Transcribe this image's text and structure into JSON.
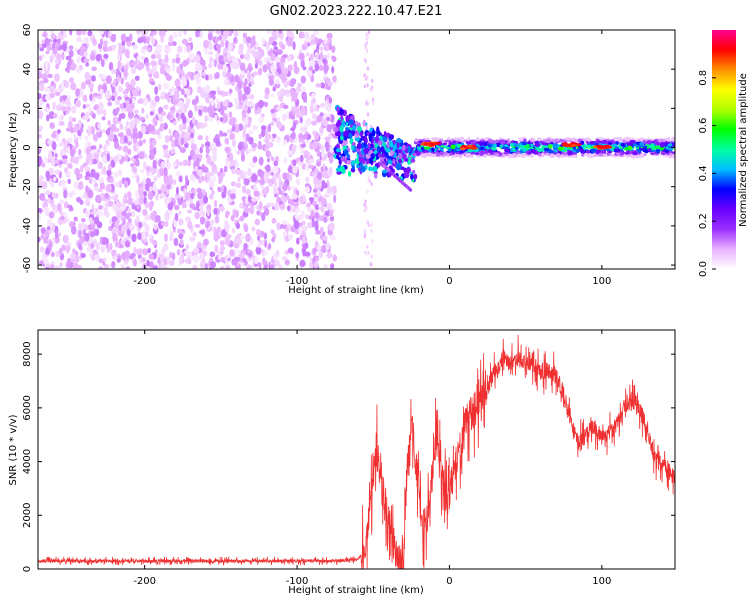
{
  "title": "GN02.2023.222.10.47.E21",
  "chart_data": [
    {
      "type": "heatmap",
      "xlabel": "Height of straight line (km)",
      "ylabel": "Frequency (Hz)",
      "xlim": [
        -270,
        148
      ],
      "ylim": [
        -62,
        60
      ],
      "xticks": [
        -200,
        -100,
        0,
        100
      ],
      "yticks": [
        -60,
        -40,
        -20,
        0,
        20,
        40,
        60
      ],
      "grid": false,
      "colorbar": {
        "label": "Normalized spectral amplitude",
        "ticks": [
          "0.0",
          "0.2",
          "0.4",
          "0.6",
          "0.8"
        ],
        "range": [
          0,
          1
        ],
        "colormap": [
          "#ffffff",
          "#e8b0ff",
          "#9a30ff",
          "#6a00ff",
          "#0000ff",
          "#00bfff",
          "#00ffa0",
          "#00ff00",
          "#b0ff00",
          "#ffff00",
          "#ff9000",
          "#ff0000",
          "#ff0090"
        ]
      },
      "regions": [
        {
          "name": "noise",
          "x_range": [
            -270,
            -75
          ],
          "y_range": [
            -62,
            60
          ],
          "amplitude_range": [
            0.02,
            0.12
          ]
        },
        {
          "name": "transition",
          "x_range": [
            -75,
            -22
          ],
          "y_range": [
            -25,
            20
          ],
          "amplitude_range": [
            0.1,
            0.5
          ]
        },
        {
          "name": "band",
          "x_range": [
            -22,
            148
          ],
          "center_frequency": 0,
          "amplitude_range": [
            0.3,
            1.0
          ]
        }
      ]
    },
    {
      "type": "line",
      "xlabel": "Height of straight line (km)",
      "ylabel": "SNR (10 * v/v)",
      "xlim": [
        -270,
        148
      ],
      "ylim": [
        0,
        8900
      ],
      "xticks": [
        -200,
        -100,
        0,
        100
      ],
      "yticks": [
        0,
        2000,
        4000,
        6000,
        8000
      ],
      "grid": false,
      "color": "#f03030",
      "x": [
        -270,
        -250,
        -200,
        -150,
        -100,
        -75,
        -60,
        -55,
        -52,
        -48,
        -45,
        -42,
        -38,
        -35,
        -32,
        -30,
        -28,
        -25,
        -22,
        -20,
        -18,
        -15,
        -12,
        -10,
        -8,
        -5,
        -2,
        0,
        5,
        10,
        15,
        20,
        25,
        30,
        35,
        40,
        45,
        50,
        55,
        60,
        65,
        70,
        75,
        80,
        85,
        90,
        95,
        100,
        105,
        110,
        115,
        120,
        125,
        130,
        135,
        140,
        145,
        148
      ],
      "values": [
        300,
        300,
        300,
        300,
        300,
        300,
        350,
        800,
        2500,
        4500,
        3500,
        2500,
        1200,
        400,
        250,
        600,
        3500,
        5500,
        4000,
        3000,
        1500,
        1800,
        3000,
        4500,
        4800,
        3500,
        2500,
        2800,
        4200,
        5500,
        5800,
        6300,
        6700,
        7400,
        7900,
        7700,
        7900,
        7600,
        7600,
        7300,
        7400,
        7200,
        6500,
        5400,
        4700,
        5000,
        5300,
        4900,
        5000,
        5400,
        6100,
        6300,
        6000,
        5100,
        4100,
        3800,
        3600,
        3400
      ]
    }
  ]
}
